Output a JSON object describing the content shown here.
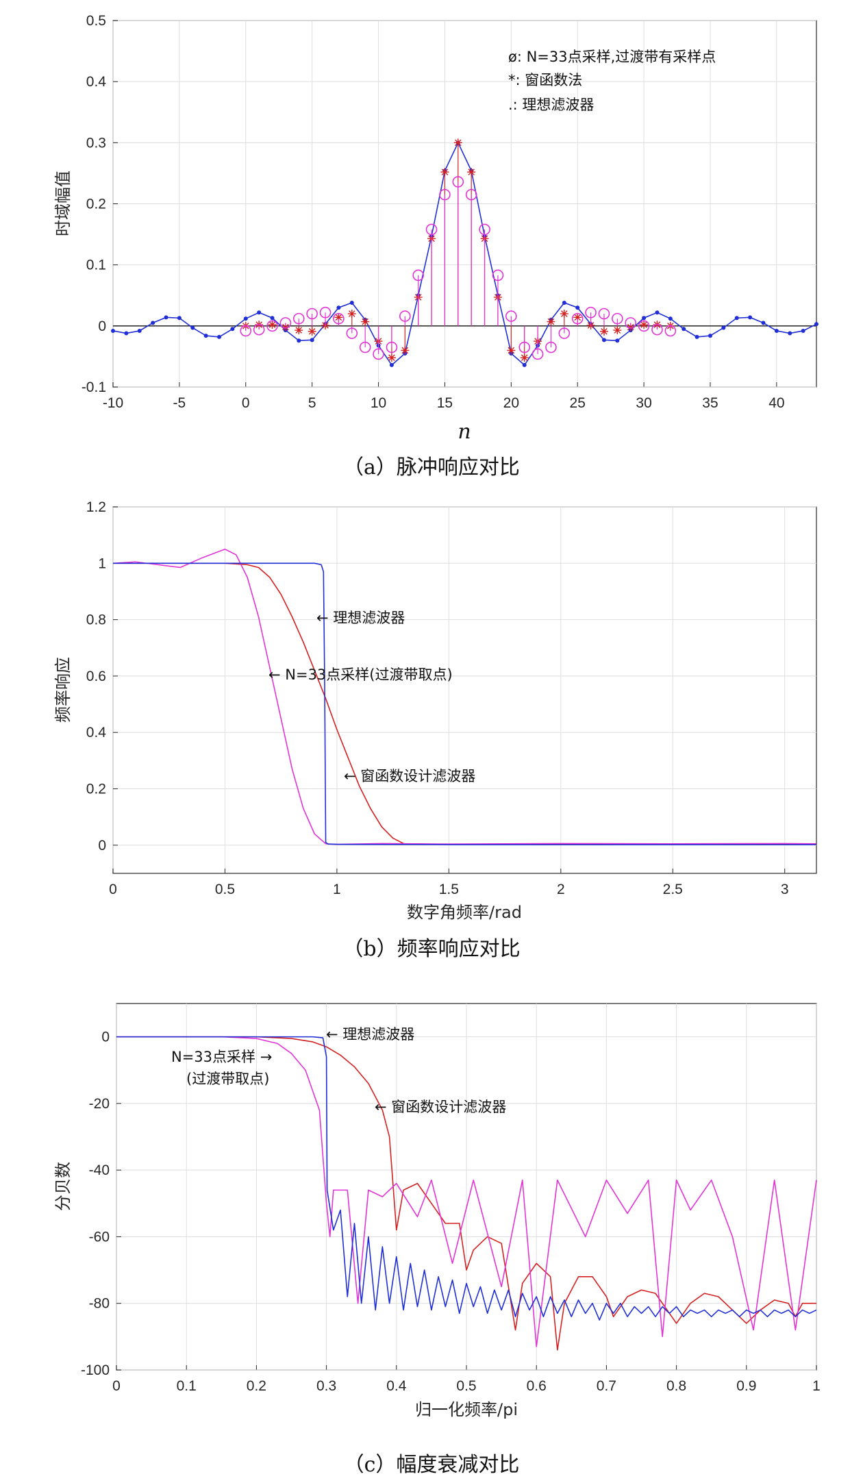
{
  "chart_data": [
    {
      "type": "scatter",
      "caption": "（a）脉冲响应对比",
      "xlabel": "n",
      "ylabel": "时域幅值",
      "xlim": [
        -10,
        43
      ],
      "ylim": [
        -0.1,
        0.5
      ],
      "xticks": [
        -10,
        -5,
        0,
        5,
        10,
        15,
        20,
        25,
        30,
        35,
        40
      ],
      "yticks": [
        -0.1,
        0,
        0.1,
        0.2,
        0.3,
        0.4,
        0.5
      ],
      "grid": true,
      "legend": [
        "ø:  N=33点采样,过渡带有采样点",
        "*:  窗函数法",
        ".:  理想滤波器"
      ],
      "series": [
        {
          "name": "理想滤波器",
          "marker": "dot-line",
          "color": "#1f2ed6",
          "x": [
            -10,
            -9,
            -8,
            -7,
            -6,
            -5,
            -4,
            -3,
            -2,
            -1,
            0,
            1,
            2,
            3,
            4,
            5,
            6,
            7,
            8,
            9,
            10,
            11,
            12,
            13,
            14,
            15,
            16,
            17,
            18,
            19,
            20,
            21,
            22,
            23,
            24,
            25,
            26,
            27,
            28,
            29,
            30,
            31,
            32,
            33,
            34,
            35,
            36,
            37,
            38,
            39,
            40,
            41,
            42,
            43
          ],
          "values": [
            -0.008,
            -0.012,
            -0.008,
            0.005,
            0.014,
            0.013,
            -0.003,
            -0.016,
            -0.018,
            -0.005,
            0.012,
            0.022,
            0.013,
            -0.007,
            -0.024,
            -0.023,
            0.003,
            0.03,
            0.038,
            0.01,
            -0.032,
            -0.064,
            -0.045,
            0.05,
            0.147,
            0.254,
            0.3,
            0.254,
            0.147,
            0.05,
            -0.045,
            -0.064,
            -0.032,
            0.01,
            0.038,
            0.03,
            0.003,
            -0.023,
            -0.024,
            -0.007,
            0.013,
            0.022,
            0.012,
            -0.005,
            -0.018,
            -0.016,
            -0.003,
            0.013,
            0.014,
            0.005,
            -0.008,
            -0.012,
            -0.008,
            0.003
          ]
        },
        {
          "name": "窗函数法",
          "marker": "star-stem",
          "color": "#d42020",
          "x": [
            0,
            1,
            2,
            3,
            4,
            5,
            6,
            7,
            8,
            9,
            10,
            11,
            12,
            13,
            14,
            15,
            16,
            17,
            18,
            19,
            20,
            21,
            22,
            23,
            24,
            25,
            26,
            27,
            28,
            29,
            30,
            31,
            32
          ],
          "values": [
            0,
            0.002,
            0.002,
            -0.002,
            -0.007,
            -0.009,
            0.001,
            0.014,
            0.02,
            0.007,
            -0.025,
            -0.052,
            -0.04,
            0.047,
            0.143,
            0.252,
            0.3,
            0.252,
            0.143,
            0.047,
            -0.04,
            -0.052,
            -0.025,
            0.007,
            0.02,
            0.014,
            0.001,
            -0.009,
            -0.007,
            -0.002,
            0.002,
            0.002,
            0
          ]
        },
        {
          "name": "N=33点采样,过渡带有采样点",
          "marker": "circle-stem",
          "color": "#e234d6",
          "x": [
            0,
            1,
            2,
            3,
            4,
            5,
            6,
            7,
            8,
            9,
            10,
            11,
            12,
            13,
            14,
            15,
            16,
            17,
            18,
            19,
            20,
            21,
            22,
            23,
            24,
            25,
            26,
            27,
            28,
            29,
            30,
            31,
            32
          ],
          "values": [
            -0.008,
            -0.006,
            0.0,
            0.005,
            0.012,
            0.02,
            0.022,
            0.012,
            -0.012,
            -0.035,
            -0.046,
            -0.035,
            0.016,
            0.083,
            0.158,
            0.215,
            0.236,
            0.215,
            0.158,
            0.083,
            0.016,
            -0.035,
            -0.046,
            -0.035,
            -0.012,
            0.012,
            0.022,
            0.02,
            0.012,
            0.005,
            0.0,
            -0.006,
            -0.008
          ]
        }
      ]
    },
    {
      "type": "line",
      "caption": "（b）频率响应对比",
      "xlabel": "数字角频率/rad",
      "ylabel": "频率响应",
      "xlim": [
        0,
        3.1416
      ],
      "ylim": [
        -0.1,
        1.2
      ],
      "xticks": [
        0,
        0.5,
        1,
        1.5,
        2,
        2.5,
        3
      ],
      "yticks": [
        0,
        0.2,
        0.4,
        0.6,
        0.8,
        1,
        1.2
      ],
      "grid": true,
      "annotations": [
        "← 理想滤波器",
        "← N=33点采样(过渡带取点)",
        "← 窗函数设计滤波器"
      ],
      "series": [
        {
          "name": "理想滤波器",
          "color": "#1f2ed6",
          "x": [
            0,
            0.3,
            0.6,
            0.8,
            0.9,
            0.93,
            0.94,
            0.945,
            0.95,
            0.96,
            1.0,
            1.5,
            2.0,
            2.5,
            3.0,
            3.14
          ],
          "values": [
            1.0,
            1.0,
            1.0,
            1.0,
            1.0,
            0.995,
            0.97,
            0.6,
            0.01,
            0.004,
            0.003,
            0.002,
            0.002,
            0.002,
            0.002,
            0.002
          ]
        },
        {
          "name": "窗函数设计滤波器",
          "color": "#d42020",
          "x": [
            0,
            0.2,
            0.4,
            0.5,
            0.6,
            0.65,
            0.7,
            0.75,
            0.8,
            0.85,
            0.9,
            0.95,
            1.0,
            1.05,
            1.1,
            1.15,
            1.2,
            1.25,
            1.3,
            1.5,
            2.0,
            2.5,
            3.0,
            3.14
          ],
          "values": [
            1.0,
            1.0,
            1.0,
            1.0,
            0.995,
            0.985,
            0.95,
            0.89,
            0.81,
            0.72,
            0.62,
            0.52,
            0.41,
            0.31,
            0.21,
            0.13,
            0.065,
            0.025,
            0.005,
            0.003,
            0.003,
            0.003,
            0.003,
            0.003
          ]
        },
        {
          "name": "N=33点采样(过渡带取点)",
          "color": "#e234d6",
          "x": [
            0,
            0.1,
            0.2,
            0.3,
            0.4,
            0.5,
            0.55,
            0.6,
            0.65,
            0.7,
            0.75,
            0.8,
            0.85,
            0.9,
            0.95,
            1.0,
            1.2,
            1.5,
            2.0,
            2.5,
            3.0,
            3.14
          ],
          "values": [
            1.0,
            1.005,
            0.995,
            0.985,
            1.02,
            1.05,
            1.03,
            0.95,
            0.81,
            0.63,
            0.45,
            0.27,
            0.13,
            0.04,
            0.005,
            0.003,
            0.006,
            0.004,
            0.006,
            0.005,
            0.006,
            0.005
          ]
        }
      ]
    },
    {
      "type": "line",
      "caption": "（c）幅度衰减对比",
      "xlabel": "归一化频率/pi",
      "ylabel": "分贝数",
      "xlim": [
        0,
        1
      ],
      "ylim": [
        -100,
        10
      ],
      "xticks": [
        0,
        0.1,
        0.2,
        0.3,
        0.4,
        0.5,
        0.6,
        0.7,
        0.8,
        0.9,
        1
      ],
      "yticks": [
        -100,
        -80,
        -60,
        -40,
        -20,
        0
      ],
      "grid": true,
      "annotations": [
        "← 理想滤波器",
        "N=33点采样 →",
        "(过渡带取点)",
        "← 窗函数设计滤波器"
      ],
      "series": [
        {
          "name": "理想滤波器",
          "color": "#1f2ed6",
          "x": [
            0,
            0.1,
            0.2,
            0.28,
            0.295,
            0.3,
            0.301,
            0.31,
            0.32,
            0.33,
            0.34,
            0.35,
            0.36,
            0.37,
            0.38,
            0.39,
            0.4,
            0.41,
            0.42,
            0.43,
            0.44,
            0.45,
            0.46,
            0.47,
            0.48,
            0.49,
            0.5,
            0.51,
            0.52,
            0.53,
            0.54,
            0.55,
            0.56,
            0.57,
            0.58,
            0.59,
            0.6,
            0.61,
            0.62,
            0.63,
            0.64,
            0.65,
            0.66,
            0.67,
            0.68,
            0.69,
            0.7,
            0.71,
            0.72,
            0.73,
            0.74,
            0.75,
            0.76,
            0.77,
            0.78,
            0.79,
            0.8,
            0.81,
            0.82,
            0.83,
            0.84,
            0.85,
            0.86,
            0.87,
            0.88,
            0.89,
            0.9,
            0.91,
            0.92,
            0.93,
            0.94,
            0.95,
            0.96,
            0.97,
            0.98,
            0.99,
            1.0
          ],
          "values": [
            0,
            0,
            0,
            0,
            -0.3,
            -6,
            -46,
            -58,
            -52,
            -78,
            -56,
            -80,
            -60,
            -82,
            -63,
            -80,
            -66,
            -82,
            -68,
            -81,
            -70,
            -82,
            -72,
            -81,
            -73,
            -83,
            -74,
            -81,
            -75,
            -83,
            -76,
            -82,
            -76,
            -84,
            -77,
            -82,
            -78,
            -84,
            -78,
            -83,
            -79,
            -84,
            -79,
            -83,
            -80,
            -85,
            -80,
            -83,
            -80,
            -84,
            -81,
            -83,
            -81,
            -84,
            -81,
            -83,
            -81,
            -84,
            -82,
            -83,
            -82,
            -84,
            -82,
            -83,
            -82,
            -84,
            -82,
            -83,
            -82,
            -84,
            -82,
            -83,
            -82,
            -84,
            -82,
            -83,
            -82
          ]
        },
        {
          "name": "窗函数设计滤波器",
          "color": "#d42020",
          "x": [
            0,
            0.2,
            0.25,
            0.28,
            0.3,
            0.32,
            0.34,
            0.36,
            0.38,
            0.39,
            0.4,
            0.41,
            0.43,
            0.45,
            0.47,
            0.49,
            0.5,
            0.51,
            0.53,
            0.55,
            0.57,
            0.58,
            0.6,
            0.62,
            0.63,
            0.64,
            0.66,
            0.68,
            0.7,
            0.71,
            0.73,
            0.75,
            0.77,
            0.79,
            0.8,
            0.82,
            0.84,
            0.86,
            0.88,
            0.9,
            0.92,
            0.94,
            0.96,
            0.97,
            0.98,
            1.0
          ],
          "values": [
            0,
            0,
            -0.5,
            -1.5,
            -3,
            -5.5,
            -9,
            -14,
            -22,
            -30,
            -58,
            -46,
            -44,
            -50,
            -56,
            -56,
            -70,
            -64,
            -60,
            -62,
            -88,
            -74,
            -68,
            -72,
            -94,
            -80,
            -72,
            -72,
            -78,
            -84,
            -78,
            -76,
            -77,
            -83,
            -86,
            -80,
            -77,
            -78,
            -82,
            -86,
            -82,
            -79,
            -80,
            -84,
            -80,
            -80
          ]
        },
        {
          "name": "N=33点采样(过渡带取点)",
          "color": "#e234d6",
          "x": [
            0,
            0.1,
            0.15,
            0.2,
            0.23,
            0.25,
            0.27,
            0.29,
            0.3,
            0.305,
            0.31,
            0.33,
            0.345,
            0.36,
            0.38,
            0.4,
            0.43,
            0.45,
            0.48,
            0.51,
            0.55,
            0.58,
            0.6,
            0.63,
            0.67,
            0.7,
            0.73,
            0.76,
            0.78,
            0.8,
            0.82,
            0.85,
            0.88,
            0.91,
            0.94,
            0.97,
            1.0
          ],
          "values": [
            0,
            0,
            0,
            -0.5,
            -2,
            -5,
            -10,
            -22,
            -50,
            -60,
            -46,
            -46,
            -80,
            -46,
            -48,
            -44,
            -54,
            -43,
            -68,
            -43,
            -75,
            -43,
            -93,
            -43,
            -60,
            -43,
            -53,
            -43,
            -90,
            -43,
            -52,
            -43,
            -60,
            -88,
            -43,
            -88,
            -43
          ]
        }
      ]
    }
  ]
}
